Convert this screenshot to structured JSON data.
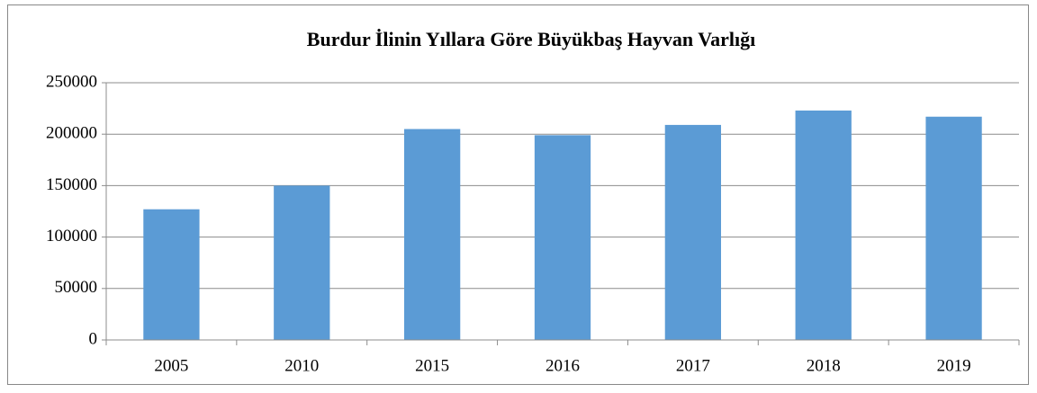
{
  "chart_data": {
    "type": "bar",
    "title": "Burdur İlinin Yıllara Göre Büyükbaş Hayvan Varlığı",
    "categories": [
      "2005",
      "2010",
      "2015",
      "2016",
      "2017",
      "2018",
      "2019"
    ],
    "values": [
      127000,
      150000,
      205000,
      199000,
      209000,
      223000,
      217000
    ],
    "color": "#5b9bd5",
    "ylim": [
      0,
      250000
    ],
    "yticks": [
      0,
      50000,
      100000,
      150000,
      200000,
      250000
    ],
    "grid": true
  }
}
